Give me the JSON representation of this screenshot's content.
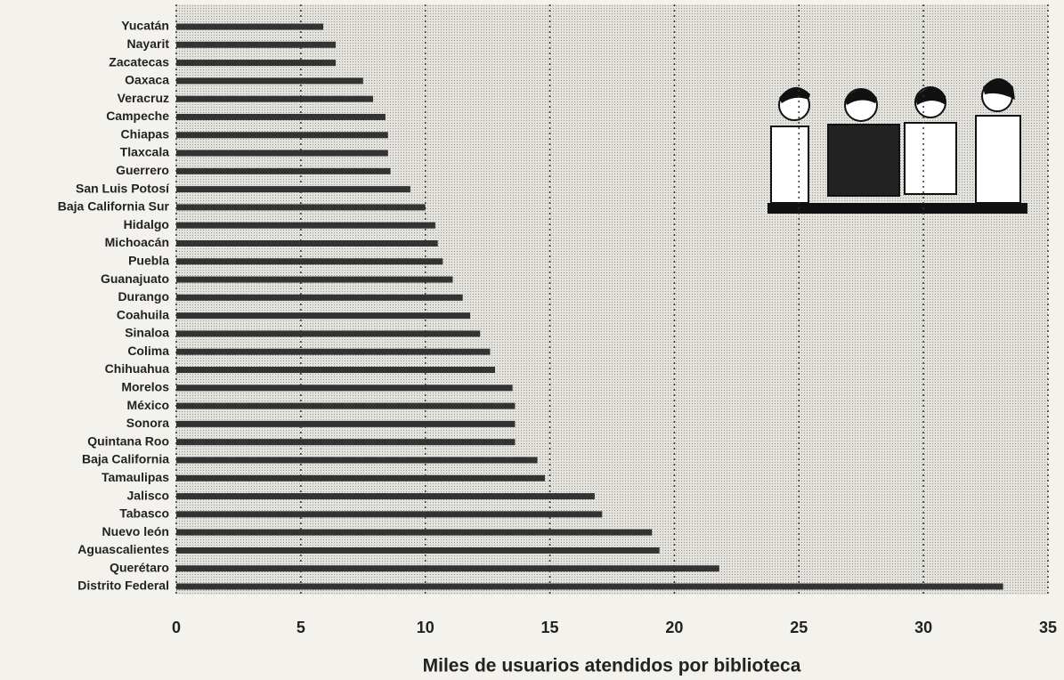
{
  "chart_data": {
    "type": "bar",
    "orientation": "horizontal",
    "x_label": "Miles de usuarios atendidos por biblioteca",
    "categories": [
      "Yucatán",
      "Nayarit",
      "Zacatecas",
      "Oaxaca",
      "Veracruz",
      "Campeche",
      "Chiapas",
      "Tlaxcala",
      "Guerrero",
      "San Luis Potosí",
      "Baja California Sur",
      "Hidalgo",
      "Michoacán",
      "Puebla",
      "Guanajuato",
      "Durango",
      "Coahuila",
      "Sinaloa",
      "Colima",
      "Chihuahua",
      "Morelos",
      "México",
      "Sonora",
      "Quintana Roo",
      "Baja California",
      "Tamaulipas",
      "Jalisco",
      "Tabasco",
      "Nuevo león",
      "Aguascalientes",
      "Querétaro",
      "Distrito Federal"
    ],
    "values": [
      5.9,
      6.4,
      6.4,
      7.5,
      7.9,
      8.4,
      8.5,
      8.5,
      8.6,
      9.4,
      10.0,
      10.4,
      10.5,
      10.7,
      11.1,
      11.5,
      11.8,
      12.2,
      12.6,
      12.8,
      13.5,
      13.6,
      13.6,
      13.6,
      14.5,
      14.8,
      16.8,
      17.1,
      19.1,
      19.4,
      21.8,
      33.2
    ],
    "color": "#333333",
    "xlim": [
      0,
      35
    ],
    "xticks": [
      0,
      5,
      10,
      15,
      20,
      25,
      30,
      35
    ],
    "grid": true
  }
}
